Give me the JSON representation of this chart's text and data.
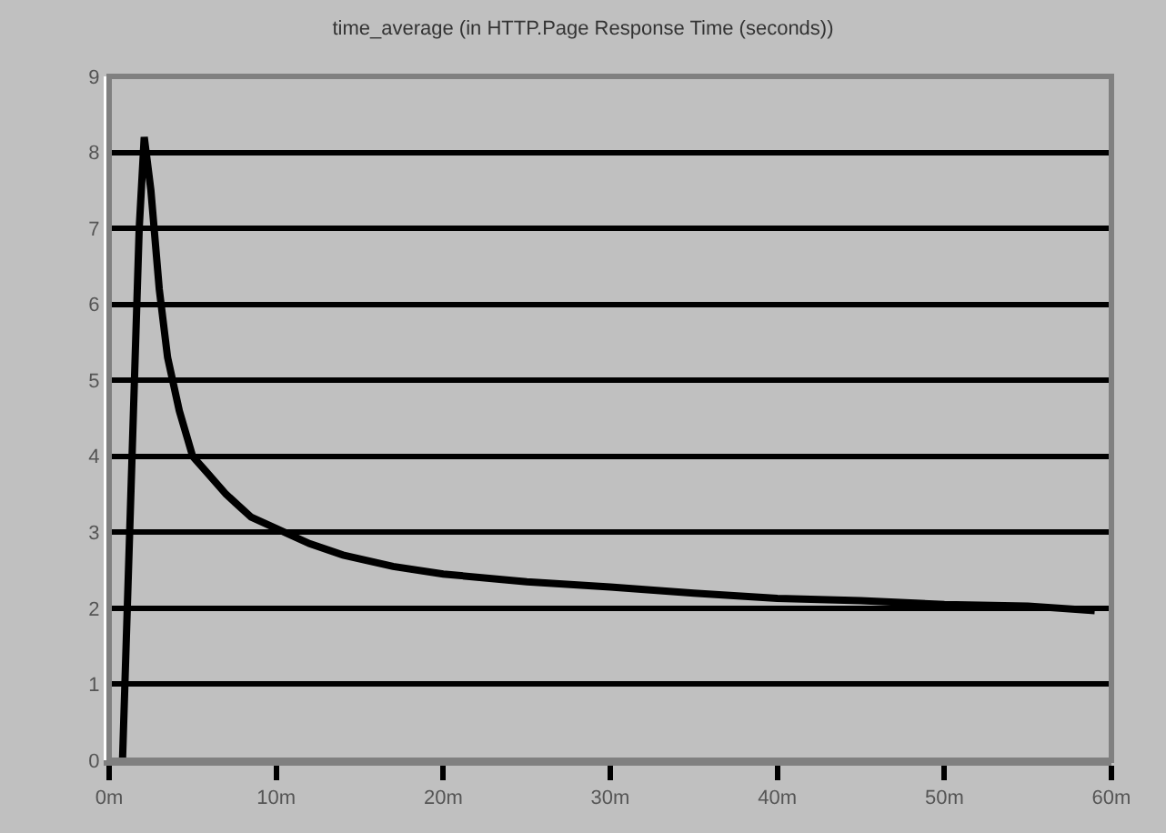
{
  "chart_data": {
    "type": "line",
    "title": "time_average (in HTTP.Page Response Time (seconds))",
    "x": [
      0.8,
      1.3,
      1.8,
      2.1,
      2.5,
      3.0,
      3.5,
      4.2,
      5.0,
      5.8,
      7.0,
      8.5,
      10.0,
      12.0,
      14.0,
      17.0,
      20.0,
      25.0,
      30.0,
      35.0,
      40.0,
      45.0,
      50.0,
      55.0,
      59.0
    ],
    "series": [
      {
        "color": "#000000",
        "values": [
          0,
          3.5,
          7.0,
          8.2,
          7.5,
          6.2,
          5.3,
          4.6,
          4.0,
          3.8,
          3.5,
          3.2,
          3.05,
          2.85,
          2.7,
          2.55,
          2.45,
          2.35,
          2.28,
          2.2,
          2.13,
          2.1,
          2.05,
          2.03,
          1.97
        ]
      }
    ],
    "xlim": [
      0,
      60
    ],
    "xticks": [
      {
        "value": 0,
        "label": "0m"
      },
      {
        "value": 10,
        "label": "10m"
      },
      {
        "value": 20,
        "label": "20m"
      },
      {
        "value": 30,
        "label": "30m"
      },
      {
        "value": 40,
        "label": "40m"
      },
      {
        "value": 50,
        "label": "50m"
      },
      {
        "value": 60,
        "label": "60m"
      }
    ],
    "ylim": [
      0,
      9
    ],
    "yticks": [
      0,
      1,
      2,
      3,
      4,
      5,
      6,
      7,
      8,
      9
    ],
    "grid": "y",
    "marker": "none",
    "line_style": "solid"
  }
}
